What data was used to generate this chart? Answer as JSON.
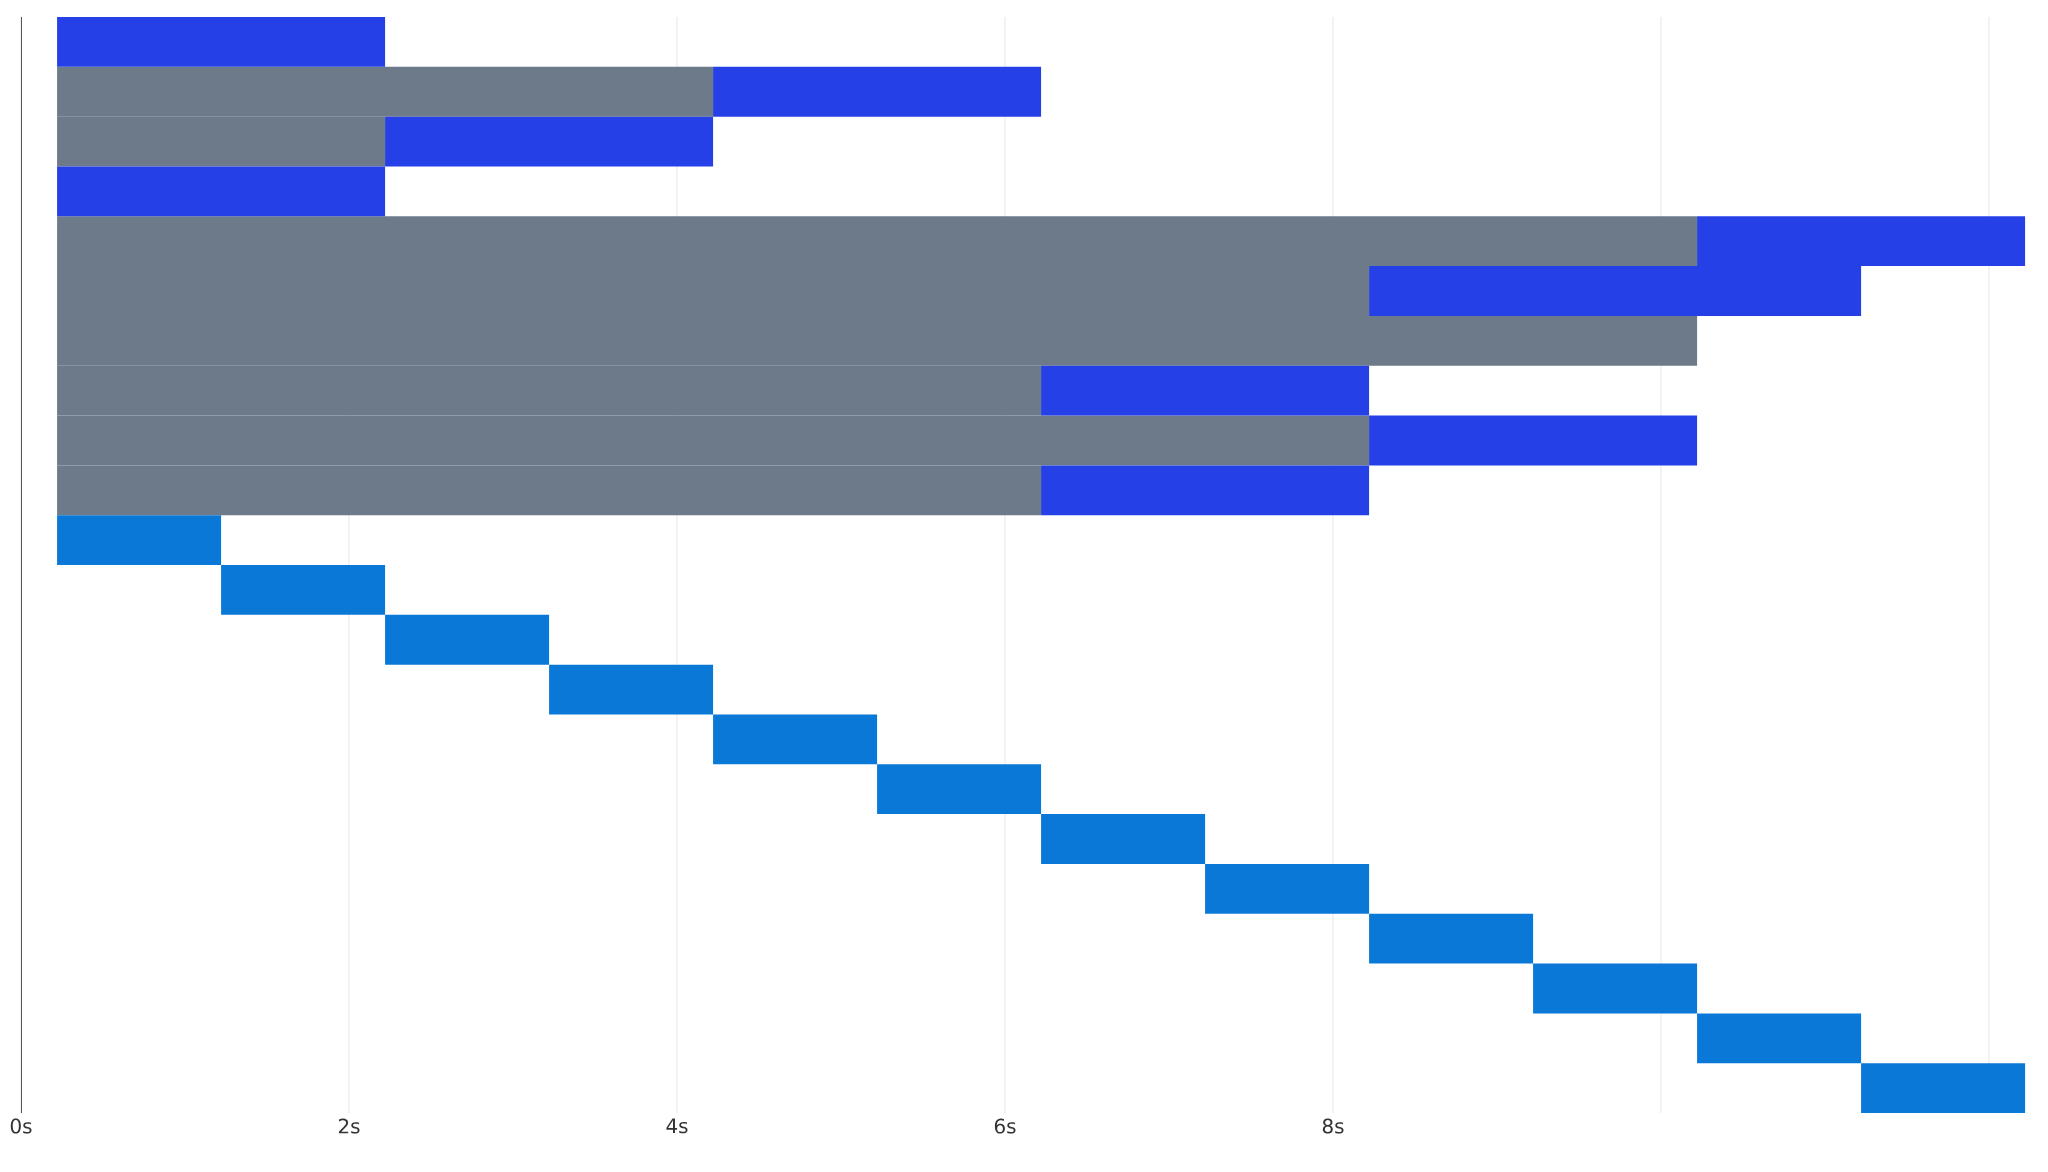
{
  "chart_data": {
    "type": "bar",
    "orientation": "horizontal",
    "grid": "x",
    "tick_labels": "x",
    "xlim": [
      0,
      12.25
    ],
    "xticks": [
      {
        "value": 0,
        "label": "0s"
      },
      {
        "value": 2,
        "label": "2s"
      },
      {
        "value": 4,
        "label": "4s"
      },
      {
        "value": 6,
        "label": "6s"
      },
      {
        "value": 8,
        "label": "8s"
      },
      {
        "value": 10,
        "label": null
      },
      {
        "value": 12,
        "label": null
      }
    ],
    "categories": [
      null,
      null,
      null,
      null,
      null,
      null,
      null,
      null,
      null,
      null,
      null,
      null,
      null,
      null,
      null,
      null,
      null,
      null,
      null,
      null,
      null,
      null
    ],
    "series": [
      {
        "color": "#6c7a89",
        "values": [
          null,
          4,
          2,
          null,
          10,
          8,
          10,
          6,
          8,
          6,
          null,
          null,
          null,
          null,
          null,
          null,
          null,
          null,
          null,
          null,
          null,
          null
        ],
        "base": [
          null,
          0.22,
          0.22,
          null,
          0.22,
          0.22,
          0.22,
          0.22,
          0.22,
          0.22,
          null,
          null,
          null,
          null,
          null,
          null,
          null,
          null,
          null,
          null,
          null,
          null
        ]
      },
      {
        "color": "#2440e6",
        "values": [
          2,
          2,
          2,
          2,
          2,
          3,
          null,
          2,
          2,
          2,
          null,
          null,
          null,
          null,
          null,
          null,
          null,
          null,
          null,
          null,
          null,
          null
        ],
        "base": [
          0.22,
          4.22,
          2.22,
          0.22,
          10.22,
          8.22,
          null,
          6.22,
          8.22,
          6.22,
          null,
          null,
          null,
          null,
          null,
          null,
          null,
          null,
          null,
          null,
          null,
          null
        ]
      },
      {
        "color": "#0a78d6",
        "values": [
          null,
          null,
          null,
          null,
          null,
          null,
          null,
          null,
          null,
          null,
          1,
          1,
          1,
          1,
          1,
          1,
          1,
          1,
          1,
          1,
          1,
          1
        ],
        "base": [
          null,
          null,
          null,
          null,
          null,
          null,
          null,
          null,
          null,
          null,
          0.22,
          1.22,
          2.22,
          3.22,
          4.22,
          5.22,
          6.22,
          7.22,
          8.22,
          9.22,
          10.22,
          11.22
        ]
      }
    ]
  }
}
